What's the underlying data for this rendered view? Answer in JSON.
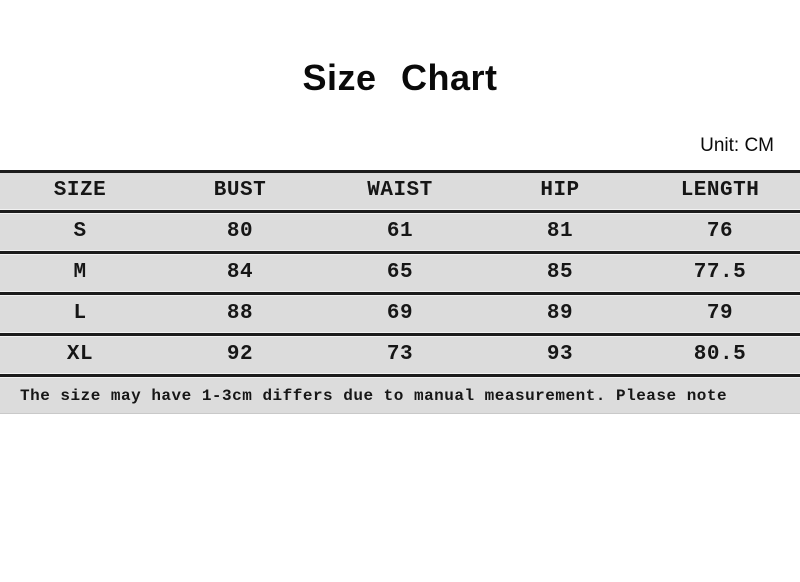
{
  "title": "Size Chart",
  "unit_label": "Unit: CM",
  "chart_data": {
    "type": "table",
    "title": "Size Chart",
    "unit": "CM",
    "columns": [
      "SIZE",
      "BUST",
      "WAIST",
      "HIP",
      "LENGTH"
    ],
    "rows": [
      [
        "S",
        80,
        61,
        81,
        76
      ],
      [
        "M",
        84,
        65,
        85,
        77.5
      ],
      [
        "L",
        88,
        69,
        89,
        79
      ],
      [
        "XL",
        92,
        73,
        93,
        80.5
      ]
    ],
    "note": "The size may have 1-3cm differs due to manual measurement. Please note"
  },
  "colors": {
    "page_background": "#ffffff",
    "row_background": "#dcdcdc",
    "rule": "#1c1c1c",
    "text": "#161616"
  }
}
